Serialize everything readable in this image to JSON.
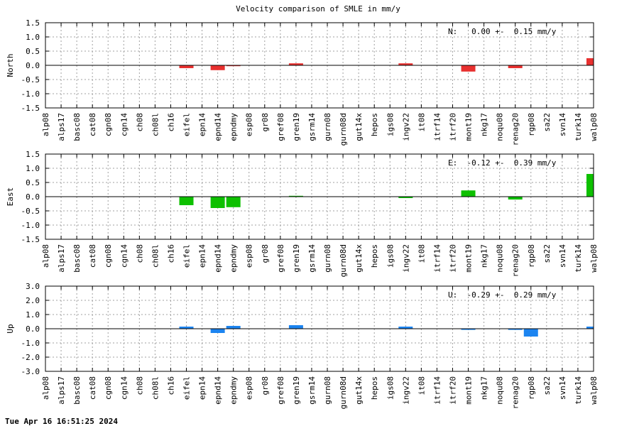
{
  "chart_data": {
    "type": "bar",
    "title": "Velocity comparison of SMLE in mm/y",
    "categories": [
      "alp08",
      "alps17",
      "basc08",
      "cat08",
      "cgn08",
      "cgn14",
      "ch08",
      "ch08l",
      "ch16",
      "eifel",
      "epn14",
      "epnd14",
      "epndmy",
      "esp08",
      "gr08",
      "gref08",
      "gren19",
      "gsrm14",
      "gurn08",
      "gurn08d",
      "gut14x",
      "hepos",
      "igs08",
      "ingv22",
      "it08",
      "itrf14",
      "itrf20",
      "mont19",
      "nkg17",
      "noqu08",
      "renag20",
      "rgp08",
      "sa22",
      "svn14",
      "turk14",
      "walp08"
    ],
    "grid": true,
    "panels": [
      {
        "ylabel": "North",
        "color": "#e8302f",
        "ylim": [
          -1.5,
          1.5
        ],
        "yticks": [
          "1.5",
          "1.0",
          "0.5",
          "0.0",
          "-0.5",
          "-1.0",
          "-1.5"
        ],
        "ytick_values": [
          1.5,
          1.0,
          0.5,
          0.0,
          -0.5,
          -1.0,
          -1.5
        ],
        "stat_text": "N:   0.00 +-  0.15 mm/y",
        "values": [
          0,
          0,
          0,
          0,
          0,
          0,
          0,
          0,
          0,
          -0.1,
          0,
          -0.17,
          -0.03,
          0,
          0,
          0,
          0.07,
          0,
          0,
          0,
          0,
          0,
          0,
          0.07,
          0,
          0,
          0,
          -0.22,
          0,
          0,
          -0.1,
          0,
          0,
          0,
          0,
          0.25
        ]
      },
      {
        "ylabel": "East",
        "color": "#0ec000",
        "ylim": [
          -1.5,
          1.5
        ],
        "yticks": [
          "1.5",
          "1.0",
          "0.5",
          "0.0",
          "-0.5",
          "-1.0",
          "-1.5"
        ],
        "ytick_values": [
          1.5,
          1.0,
          0.5,
          0.0,
          -0.5,
          -1.0,
          -1.5
        ],
        "stat_text": "E:  -0.12 +-  0.39 mm/y",
        "values": [
          0,
          0,
          0,
          0,
          0,
          0,
          0,
          0,
          0,
          -0.3,
          0,
          -0.4,
          -0.37,
          0,
          0,
          0,
          0.03,
          0,
          0,
          0,
          0,
          0,
          0,
          -0.05,
          0,
          0,
          0,
          0.22,
          0,
          0,
          -0.1,
          0,
          0,
          0,
          0,
          0.8
        ]
      },
      {
        "ylabel": "Up",
        "color": "#1c84f0",
        "ylim": [
          -3.0,
          3.0
        ],
        "yticks": [
          "3.0",
          "2.0",
          "1.0",
          "0.0",
          "-1.0",
          "-2.0",
          "-3.0"
        ],
        "ytick_values": [
          3.0,
          2.0,
          1.0,
          0.0,
          -1.0,
          -2.0,
          -3.0
        ],
        "stat_text": "U:  -0.29 +-  0.29 mm/y",
        "values": [
          0,
          0,
          0,
          0,
          0,
          0,
          0,
          0,
          0,
          0.15,
          0,
          -0.3,
          0.2,
          0,
          0,
          0,
          0.25,
          0,
          0,
          0,
          0,
          0,
          0,
          0.15,
          0,
          0,
          0,
          -0.08,
          0,
          0,
          -0.08,
          -0.55,
          0,
          0,
          0,
          0.15
        ]
      }
    ]
  },
  "timestamp": "Tue Apr 16 16:51:25 2024"
}
